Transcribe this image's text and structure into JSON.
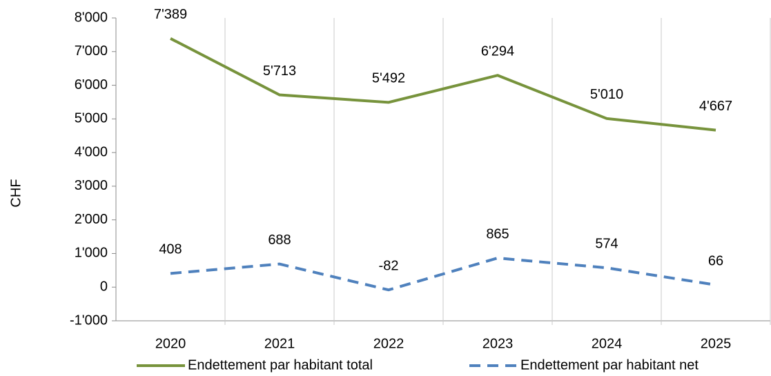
{
  "chart_data": {
    "type": "line",
    "y_label": "CHF",
    "categories": [
      "2020",
      "2021",
      "2022",
      "2023",
      "2024",
      "2025"
    ],
    "series": [
      {
        "name": "Endettement par habitant total",
        "color": "#77933c",
        "dash": "solid",
        "values": [
          7389,
          5713,
          5492,
          6294,
          5010,
          4667
        ],
        "value_labels": [
          "7'389",
          "5'713",
          "5'492",
          "6'294",
          "5'010",
          "4'667"
        ]
      },
      {
        "name": "Endettement par habitant net",
        "color": "#4f81bd",
        "dash": "dashed",
        "values": [
          408,
          688,
          -82,
          865,
          574,
          66
        ],
        "value_labels": [
          "408",
          "688",
          "-82",
          "865",
          "574",
          "66"
        ]
      }
    ],
    "ylim": [
      -1000,
      8000
    ],
    "yticks": [
      {
        "value": -1000,
        "label": "-1'000"
      },
      0,
      {
        "value": 1000,
        "label": "1'000"
      },
      {
        "value": 2000,
        "label": "2'000"
      },
      {
        "value": 3000,
        "label": "3'000"
      },
      {
        "value": 4000,
        "label": "4'000"
      },
      {
        "value": 5000,
        "label": "5'000"
      },
      {
        "value": 6000,
        "label": "6'000"
      },
      {
        "value": 7000,
        "label": "7'000"
      },
      {
        "value": 8000,
        "label": "8'000"
      }
    ],
    "legend": "bottom"
  }
}
